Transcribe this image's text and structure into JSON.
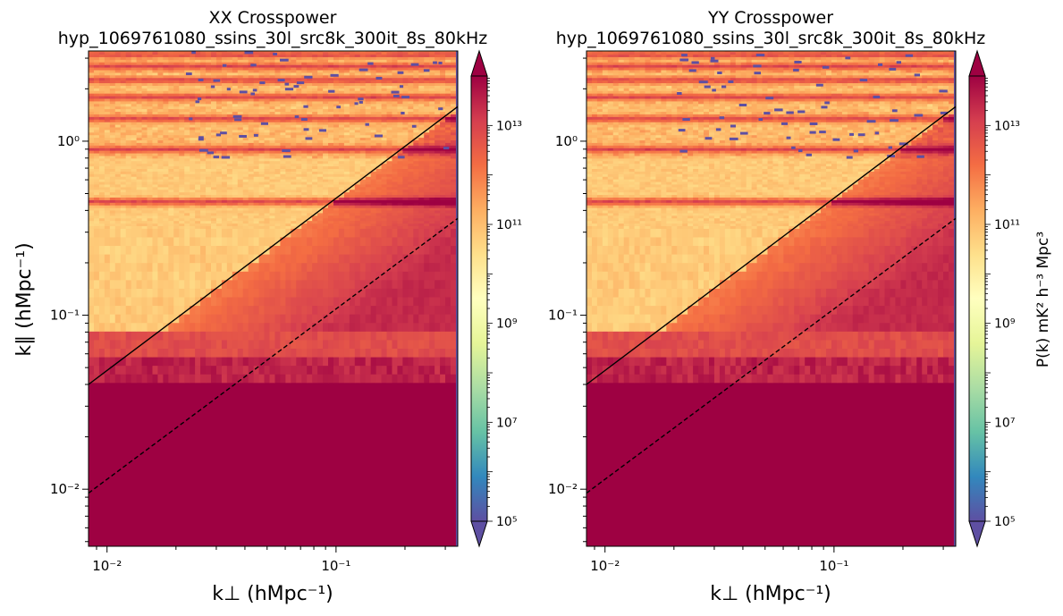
{
  "chart_data": [
    {
      "type": "heatmap",
      "title": "XX Crosspower",
      "subtitle": "hyp_1069761080_ssins_30l_src8k_300it_8s_80kHz",
      "xlabel": "k⊥ (hMpc⁻¹)",
      "ylabel": "k∥ (hMpc⁻¹)",
      "x_scale": "log",
      "y_scale": "log",
      "xlim": [
        0.0083,
        0.34
      ],
      "ylim": [
        0.0047,
        3.3
      ],
      "x_ticks": [
        {
          "value": 0.01,
          "label": "10⁻²"
        },
        {
          "value": 0.1,
          "label": "10⁻¹"
        }
      ],
      "y_ticks": [
        {
          "value": 0.01,
          "label": "10⁻²"
        },
        {
          "value": 0.1,
          "label": "10⁻¹"
        },
        {
          "value": 1,
          "label": "10⁰"
        }
      ],
      "horizon_lines": [
        {
          "style": "solid",
          "x": [
            0.0083,
            0.34
          ],
          "y": [
            0.04,
            1.58
          ]
        },
        {
          "style": "dashed",
          "x": [
            0.0083,
            0.34
          ],
          "y": [
            0.0095,
            0.36
          ]
        }
      ],
      "colorbar": {
        "scale": "log",
        "range": [
          100000,
          100000000000000
        ],
        "ticks": [
          {
            "value": 100000,
            "label": "10⁵"
          },
          {
            "value": 10000000,
            "label": "10⁷"
          },
          {
            "value": 1000000000,
            "label": "10⁹"
          },
          {
            "value": 100000000000,
            "label": "10¹¹"
          },
          {
            "value": 10000000000000,
            "label": "10¹³"
          }
        ],
        "label": "",
        "colormap": "Spectral_r",
        "extend": "both"
      }
    },
    {
      "type": "heatmap",
      "title": "YY Crosspower",
      "subtitle": "hyp_1069761080_ssins_30l_src8k_300it_8s_80kHz",
      "xlabel": "k⊥ (hMpc⁻¹)",
      "ylabel": "",
      "x_scale": "log",
      "y_scale": "log",
      "xlim": [
        0.0083,
        0.34
      ],
      "ylim": [
        0.0047,
        3.3
      ],
      "x_ticks": [
        {
          "value": 0.01,
          "label": "10⁻²"
        },
        {
          "value": 0.1,
          "label": "10⁻¹"
        }
      ],
      "y_ticks": [
        {
          "value": 0.01,
          "label": "10⁻²"
        },
        {
          "value": 0.1,
          "label": "10⁻¹"
        },
        {
          "value": 1,
          "label": "10⁰"
        }
      ],
      "horizon_lines": [
        {
          "style": "solid",
          "x": [
            0.0083,
            0.34
          ],
          "y": [
            0.04,
            1.58
          ]
        },
        {
          "style": "dashed",
          "x": [
            0.0083,
            0.34
          ],
          "y": [
            0.0095,
            0.36
          ]
        }
      ],
      "colorbar": {
        "scale": "log",
        "range": [
          100000,
          100000000000000
        ],
        "ticks": [
          {
            "value": 100000,
            "label": "10⁵"
          },
          {
            "value": 10000000,
            "label": "10⁷"
          },
          {
            "value": 1000000000,
            "label": "10⁹"
          },
          {
            "value": 100000000000,
            "label": "10¹¹"
          },
          {
            "value": 10000000000000,
            "label": "10¹³"
          }
        ],
        "label": "P(k) mK² h⁻³ Mpc³",
        "colormap": "Spectral_r",
        "extend": "both"
      }
    }
  ],
  "colors": {
    "wedge_high": "#9e0142",
    "low_power": "#5e4fa2",
    "colormap_stops": [
      "#5e4fa2",
      "#3288bd",
      "#66c2a5",
      "#abdda4",
      "#e6f598",
      "#ffffbf",
      "#fee08b",
      "#fdae61",
      "#f46d43",
      "#d53e4f",
      "#9e0142"
    ]
  }
}
